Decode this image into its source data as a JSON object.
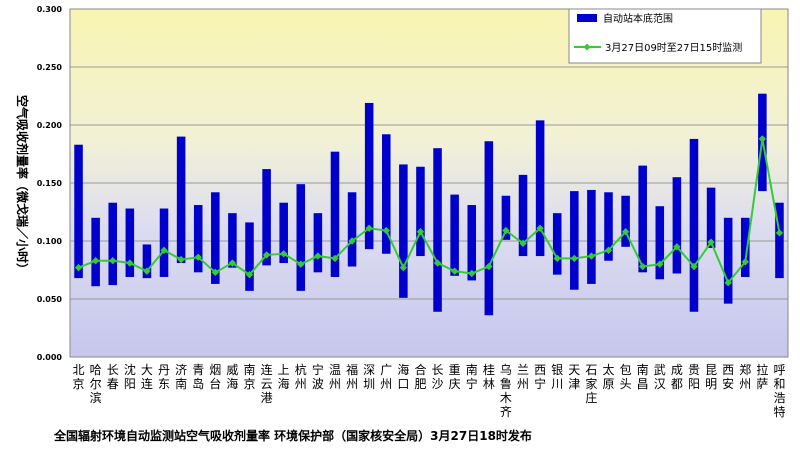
{
  "caption": "全国辐射环境自动监测站空气吸收剂量率    环境保护部（国家核安全局）3月27日18时发布",
  "chart_data": {
    "type": "bar",
    "ylabel": "空气吸收剂量率（微戈瑞／小时）",
    "ylim": [
      0,
      0.3
    ],
    "yticks": [
      "0.000",
      "0.050",
      "0.100",
      "0.150",
      "0.200",
      "0.250",
      "0.300"
    ],
    "grid": true,
    "legend_position": "top-right",
    "categories": [
      "北京",
      "哈尔滨",
      "长春",
      "沈阳",
      "大连",
      "丹东",
      "济南",
      "青岛",
      "烟台",
      "威海",
      "南京",
      "连云港",
      "上海",
      "杭州",
      "宁波",
      "温州",
      "福州",
      "深圳",
      "广州",
      "海口",
      "合肥",
      "长沙",
      "重庆",
      "南宁",
      "桂林",
      "乌鲁木齐",
      "兰州",
      "西宁",
      "银川",
      "天津",
      "石家庄",
      "太原",
      "包头",
      "南昌",
      "武汉",
      "成都",
      "贵阳",
      "昆明",
      "西安",
      "郑州",
      "拉萨",
      "呼和浩特"
    ],
    "series": [
      {
        "name": "自动站本底范围",
        "kind": "range-bar",
        "color": "#0000CC",
        "low": [
          0.068,
          0.061,
          0.062,
          0.069,
          0.068,
          0.069,
          0.081,
          0.073,
          0.063,
          0.077,
          0.057,
          0.079,
          0.081,
          0.057,
          0.073,
          0.069,
          0.078,
          0.093,
          0.089,
          0.051,
          0.087,
          0.039,
          0.07,
          0.066,
          0.036,
          0.101,
          0.087,
          0.087,
          0.071,
          0.058,
          0.063,
          0.083,
          0.095,
          0.073,
          0.067,
          0.072,
          0.039,
          0.094,
          0.046,
          0.069,
          0.143,
          0.068
        ],
        "high": [
          0.183,
          0.12,
          0.133,
          0.128,
          0.097,
          0.128,
          0.19,
          0.131,
          0.142,
          0.124,
          0.116,
          0.162,
          0.133,
          0.149,
          0.124,
          0.177,
          0.142,
          0.219,
          0.192,
          0.166,
          0.164,
          0.18,
          0.14,
          0.131,
          0.186,
          0.139,
          0.157,
          0.204,
          0.124,
          0.143,
          0.144,
          0.142,
          0.139,
          0.165,
          0.13,
          0.155,
          0.188,
          0.146,
          0.12,
          0.12,
          0.227,
          0.133
        ]
      },
      {
        "name": "3月27日09时至27日15时监测",
        "kind": "line",
        "color": "#33CC33",
        "values": [
          0.077,
          0.083,
          0.083,
          0.081,
          0.074,
          0.092,
          0.084,
          0.086,
          0.073,
          0.081,
          0.071,
          0.088,
          0.089,
          0.08,
          0.087,
          0.085,
          0.1,
          0.111,
          0.109,
          0.077,
          0.108,
          0.081,
          0.074,
          0.072,
          0.078,
          0.109,
          0.098,
          0.111,
          0.085,
          0.085,
          0.087,
          0.092,
          0.108,
          0.078,
          0.08,
          0.095,
          0.078,
          0.099,
          0.064,
          0.082,
          0.188,
          0.107
        ]
      }
    ]
  }
}
